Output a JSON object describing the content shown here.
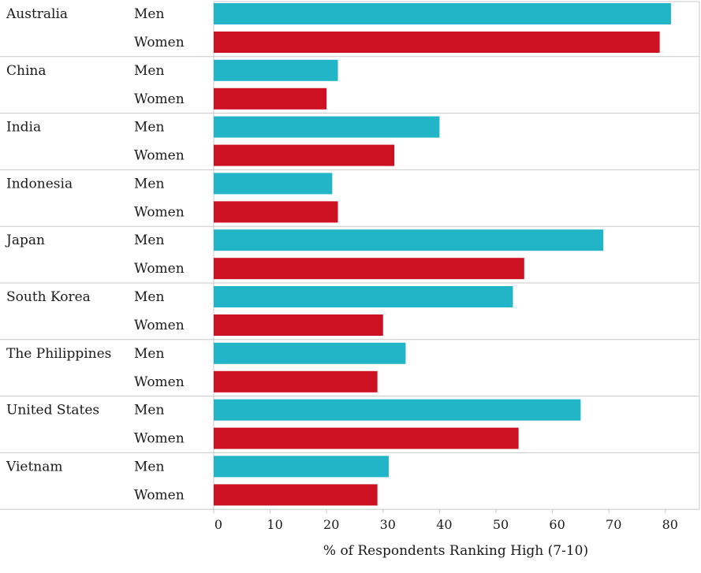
{
  "chart_data": {
    "type": "bar",
    "orientation": "horizontal",
    "title": "",
    "xlabel": "% of Respondents Ranking High (7-10)",
    "ylabel": "",
    "xlim": [
      0,
      85
    ],
    "x_ticks": [
      0,
      10,
      20,
      30,
      40,
      50,
      60,
      70,
      80
    ],
    "grid": false,
    "legend": "none",
    "groups": [
      {
        "country": "Australia",
        "men": 81,
        "women": 79
      },
      {
        "country": "China",
        "men": 22,
        "women": 20
      },
      {
        "country": "India",
        "men": 40,
        "women": 32
      },
      {
        "country": "Indonesia",
        "men": 21,
        "women": 22
      },
      {
        "country": "Japan",
        "men": 69,
        "women": 55
      },
      {
        "country": "South Korea",
        "men": 53,
        "women": 30
      },
      {
        "country": "The Philippines",
        "men": 34,
        "women": 29
      },
      {
        "country": "United States",
        "men": 65,
        "women": 54
      },
      {
        "country": "Vietnam",
        "men": 31,
        "women": 29
      }
    ],
    "series": [
      {
        "name": "Men",
        "key": "men",
        "color": "#22b5c8"
      },
      {
        "name": "Women",
        "key": "women",
        "color": "#cc1222"
      }
    ]
  }
}
